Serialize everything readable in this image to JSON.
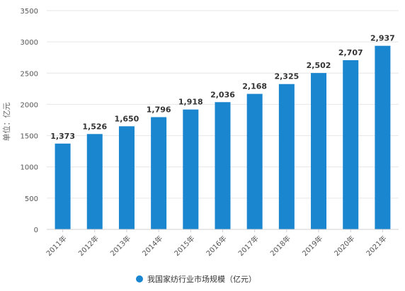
{
  "chart_data": {
    "type": "bar",
    "categories": [
      "2011年",
      "2012年",
      "2013年",
      "2014年",
      "2015年",
      "2016年",
      "2017年",
      "2018年",
      "2019年",
      "2020年",
      "2021年"
    ],
    "series": [
      {
        "name": "我国家纺行业市场规模（亿元）",
        "values": [
          1373,
          1526,
          1650,
          1796,
          1918,
          2036,
          2168,
          2325,
          2502,
          2707,
          2937
        ],
        "color": "#1a86d0"
      }
    ],
    "data_labels": [
      "1,373",
      "1,526",
      "1,650",
      "1,796",
      "1,918",
      "2,036",
      "2,168",
      "2,325",
      "2,502",
      "2,707",
      "2,937"
    ],
    "title": "",
    "xlabel": "",
    "ylabel": "单位：亿元",
    "ylim": [
      0,
      3500
    ],
    "yticks": [
      "0",
      "500",
      "1000",
      "1500",
      "2000",
      "2500",
      "3000",
      "3500"
    ],
    "grid": true,
    "legend": "bottom-center",
    "gridline_color": "#e6e6e6"
  }
}
